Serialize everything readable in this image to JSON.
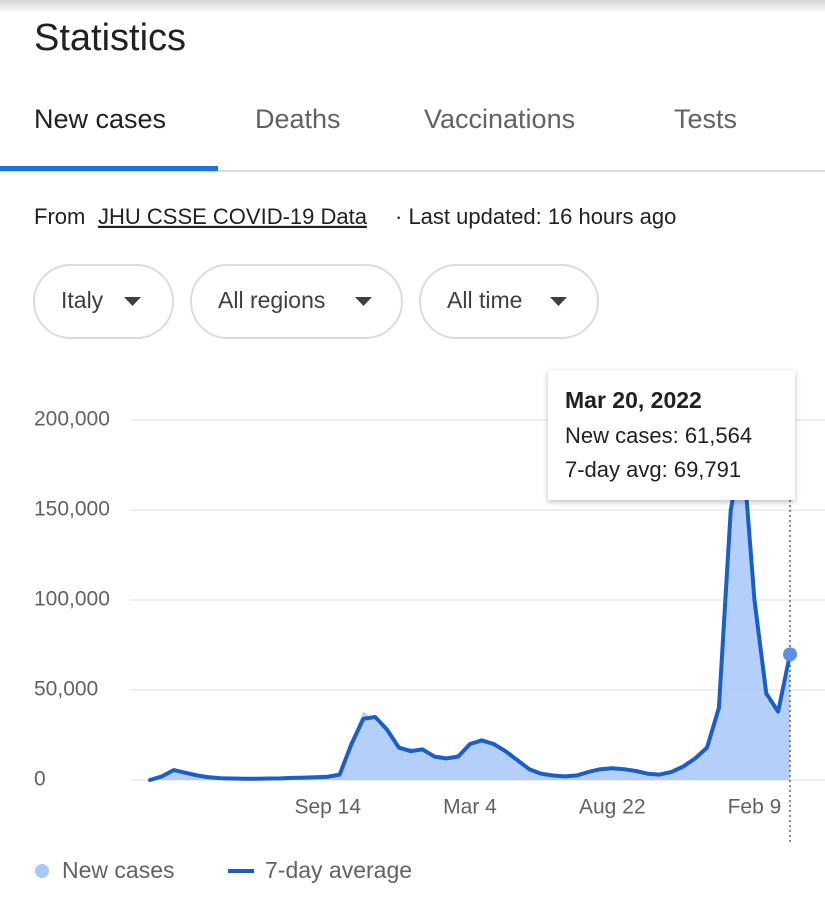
{
  "header": {
    "title": "Statistics"
  },
  "tabs": [
    "New cases",
    "Deaths",
    "Vaccinations",
    "Tests"
  ],
  "source": {
    "prefix": "From",
    "link": "JHU CSSE COVID-19 Data",
    "updated": "· Last updated: 16 hours ago"
  },
  "filters": [
    "Italy",
    "All regions",
    "All time"
  ],
  "tooltip": {
    "title": "Mar 20, 2022",
    "lines": [
      "New cases: 61,564",
      "7-day avg: 69,791"
    ]
  },
  "chart_data": {
    "type": "line",
    "categories": [
      null,
      null,
      null,
      null,
      null,
      null,
      null,
      null,
      null,
      null,
      null,
      null,
      null,
      null,
      null,
      "Sep 14",
      null,
      null,
      null,
      null,
      null,
      null,
      null,
      null,
      null,
      null,
      null,
      "Mar 4",
      null,
      null,
      null,
      null,
      null,
      null,
      null,
      null,
      null,
      null,
      null,
      "Aug 22",
      null,
      null,
      null,
      null,
      null,
      null,
      null,
      null,
      null,
      null,
      null,
      "Feb 9",
      null,
      null,
      null
    ],
    "series": [
      {
        "name": "New cases",
        "color": "#a8c7fa",
        "values": [
          0,
          2500,
          6000,
          4200,
          2300,
          1400,
          900,
          700,
          700,
          600,
          900,
          800,
          1300,
          1200,
          1700,
          1900,
          3500,
          22000,
          38000,
          33000,
          27000,
          17000,
          18000,
          16000,
          12500,
          12000,
          14500,
          21000,
          23500,
          19000,
          15500,
          10000,
          5500,
          3000,
          2700,
          1800,
          2800,
          5000,
          6200,
          6800,
          5600,
          4700,
          3300,
          3200,
          5000,
          8000,
          13000,
          19500,
          45000,
          160000,
          170000,
          95000,
          45000,
          40000,
          61564
        ]
      },
      {
        "name": "7-day average",
        "color": "#1a5fc8",
        "values": [
          0,
          2000,
          5500,
          4000,
          2500,
          1500,
          1000,
          800,
          700,
          700,
          800,
          900,
          1200,
          1300,
          1500,
          1800,
          3000,
          20000,
          34000,
          35000,
          28000,
          18000,
          16000,
          17000,
          13000,
          12000,
          13000,
          20000,
          22000,
          20000,
          16000,
          11000,
          6000,
          3500,
          2500,
          2000,
          2500,
          4500,
          6000,
          6500,
          6000,
          5000,
          3500,
          3000,
          4500,
          7500,
          12000,
          18000,
          40000,
          150000,
          185000,
          100000,
          48000,
          38000,
          69791
        ]
      }
    ],
    "ylim": [
      0,
      200000
    ],
    "yticks": [
      0,
      {
        "value": 50000,
        "label": "50,000"
      },
      {
        "value": 100000,
        "label": "100,000"
      },
      {
        "value": 150000,
        "label": "150,000"
      },
      {
        "value": 200000,
        "label": "200,000"
      }
    ],
    "grid": true
  }
}
